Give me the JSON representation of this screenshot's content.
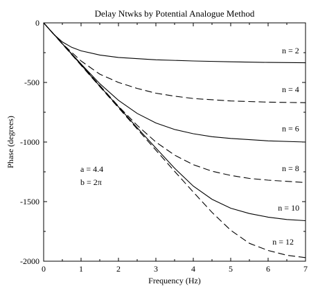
{
  "chart_data": {
    "type": "line",
    "title": "Delay Ntwks by Potential Analogue Method",
    "xlabel": "Frequency (Hz)",
    "ylabel": "Phase (degrees)",
    "xlim": [
      0,
      7
    ],
    "ylim": [
      -2000,
      0
    ],
    "x_ticks": [
      "0",
      "1",
      "2",
      "3",
      "4",
      "5",
      "6",
      "7"
    ],
    "y_ticks": [
      "0",
      "-500",
      "-1000",
      "-1500",
      "-2000"
    ],
    "grid": false,
    "legend": "inline labels",
    "annotations": [
      "a = 4.4",
      "b = 2π"
    ],
    "series": [
      {
        "name": "n = 2",
        "style": "solid",
        "x": [
          0,
          0.25,
          0.5,
          0.75,
          1,
          1.5,
          2,
          3,
          4,
          5,
          6,
          7
        ],
        "y": [
          0,
          -90,
          -160,
          -205,
          -235,
          -270,
          -290,
          -310,
          -320,
          -327,
          -332,
          -335
        ]
      },
      {
        "name": "n = 4",
        "style": "dashed",
        "x": [
          0,
          0.5,
          1,
          1.5,
          2,
          2.5,
          3,
          3.5,
          4,
          5,
          6,
          7
        ],
        "y": [
          0,
          -175,
          -320,
          -430,
          -500,
          -550,
          -590,
          -615,
          -635,
          -655,
          -665,
          -670
        ]
      },
      {
        "name": "n = 6",
        "style": "solid",
        "x": [
          0,
          0.5,
          1,
          1.5,
          2,
          2.5,
          3,
          3.5,
          4,
          4.5,
          5,
          6,
          7
        ],
        "y": [
          0,
          -175,
          -345,
          -510,
          -650,
          -760,
          -840,
          -895,
          -930,
          -955,
          -970,
          -990,
          -1000
        ]
      },
      {
        "name": "n = 8",
        "style": "dashed",
        "x": [
          0,
          0.5,
          1,
          1.5,
          2,
          2.5,
          3,
          3.5,
          4,
          4.5,
          5,
          5.5,
          6,
          7
        ],
        "y": [
          0,
          -175,
          -350,
          -525,
          -700,
          -860,
          -1000,
          -1110,
          -1190,
          -1245,
          -1280,
          -1305,
          -1320,
          -1340
        ]
      },
      {
        "name": "n = 10",
        "style": "solid",
        "x": [
          0,
          0.5,
          1,
          1.5,
          2,
          2.5,
          3,
          3.5,
          4,
          4.5,
          5,
          5.5,
          6,
          6.5,
          7
        ],
        "y": [
          0,
          -175,
          -352,
          -530,
          -705,
          -880,
          -1050,
          -1220,
          -1370,
          -1480,
          -1555,
          -1600,
          -1630,
          -1650,
          -1660
        ]
      },
      {
        "name": "n = 12",
        "style": "dashed",
        "x": [
          0,
          0.5,
          1,
          1.5,
          2,
          2.5,
          3,
          3.5,
          4,
          4.5,
          5,
          5.5,
          6,
          6.5,
          7
        ],
        "y": [
          0,
          -178,
          -356,
          -535,
          -712,
          -890,
          -1068,
          -1246,
          -1420,
          -1590,
          -1740,
          -1850,
          -1910,
          -1950,
          -1970
        ]
      }
    ]
  }
}
